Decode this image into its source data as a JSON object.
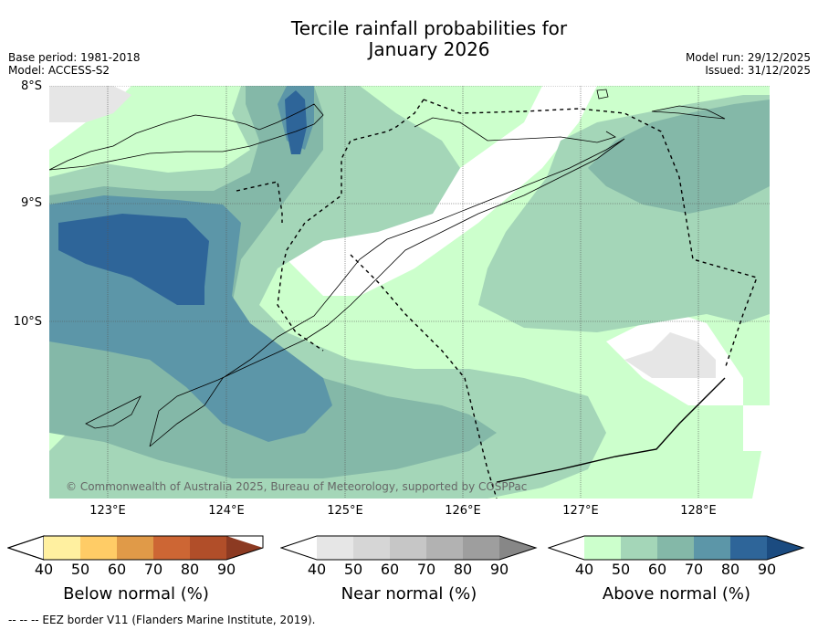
{
  "title": {
    "line1": "Tercile rainfall probabilities for",
    "line2": "January 2026"
  },
  "meta": {
    "base_period": "Base period: 1981-2018",
    "model": "Model: ACCESS-S2",
    "model_run": "Model run: 29/12/2025",
    "issued": "Issued: 31/12/2025"
  },
  "axes": {
    "lat_labels": [
      "8°S",
      "9°S",
      "10°S"
    ],
    "lon_labels": [
      "123°E",
      "124°E",
      "125°E",
      "126°E",
      "127°E",
      "128°E"
    ]
  },
  "copyright": "© Commonwealth of Australia 2025, Bureau of Meteorology, supported by COSPPac",
  "colorbars": [
    {
      "label": "Below normal (%)",
      "ticks": [
        "40",
        "50",
        "60",
        "70",
        "80",
        "90"
      ],
      "colors": [
        "#ffffff",
        "#fff0a0",
        "#ffcc66",
        "#e09a48",
        "#cd6634",
        "#b14e29",
        "#8c3a22"
      ]
    },
    {
      "label": "Near normal (%)",
      "ticks": [
        "40",
        "50",
        "60",
        "70",
        "80",
        "90"
      ],
      "colors": [
        "#ffffff",
        "#e6e6e6",
        "#d6d6d6",
        "#c6c6c6",
        "#b2b2b2",
        "#9e9e9e",
        "#878787"
      ]
    },
    {
      "label": "Above normal (%)",
      "ticks": [
        "40",
        "50",
        "60",
        "70",
        "80",
        "90"
      ],
      "colors": [
        "#ffffff",
        "#ccffcc",
        "#a4d6b8",
        "#84b8a8",
        "#5c96a8",
        "#2e6599",
        "#1b4b80"
      ]
    }
  ],
  "footnote": "-- -- -- EEZ border V11 (Flanders Marine Institute, 2019)."
}
